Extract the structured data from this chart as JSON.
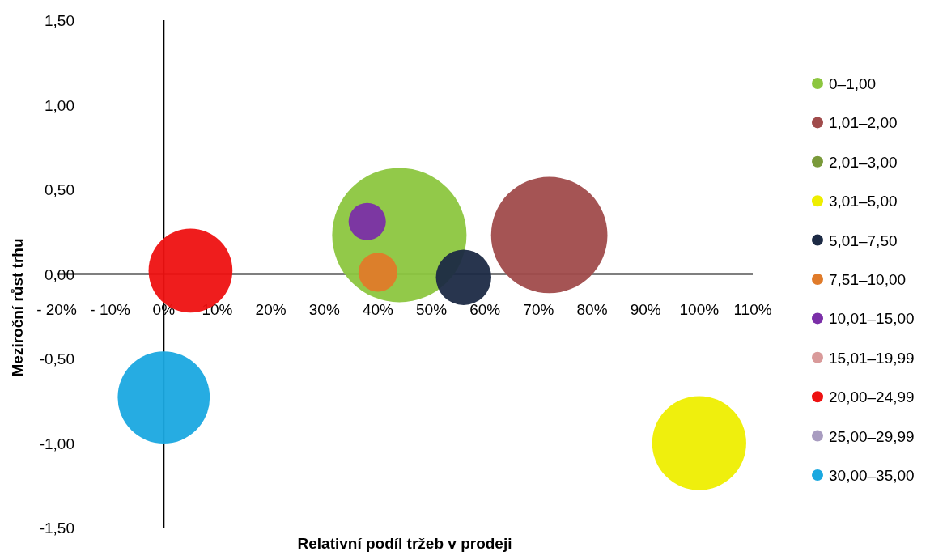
{
  "chart_data": {
    "type": "bubble",
    "xlabel": "Relativní podíl tržeb v prodeji",
    "ylabel": "Meziroční růst trhu",
    "xlim": [
      -20,
      110
    ],
    "ylim": [
      -1.5,
      1.5
    ],
    "xticks": [
      {
        "value": -20,
        "label": "- 20%"
      },
      {
        "value": -10,
        "label": "- 10%"
      },
      {
        "value": 0,
        "label": "0%"
      },
      {
        "value": 10,
        "label": "10%"
      },
      {
        "value": 20,
        "label": "20%"
      },
      {
        "value": 30,
        "label": "30%"
      },
      {
        "value": 40,
        "label": "40%"
      },
      {
        "value": 50,
        "label": "50%"
      },
      {
        "value": 60,
        "label": "60%"
      },
      {
        "value": 70,
        "label": "70%"
      },
      {
        "value": 80,
        "label": "80%"
      },
      {
        "value": 90,
        "label": "90%"
      },
      {
        "value": 100,
        "label": "100%"
      },
      {
        "value": 110,
        "label": "110%"
      }
    ],
    "yticks": [
      {
        "value": -1.5,
        "label": "-1,50"
      },
      {
        "value": -1,
        "label": "-1,00"
      },
      {
        "value": -0.5,
        "label": "-0,50"
      },
      {
        "value": 0,
        "label": "0,00"
      },
      {
        "value": 0.5,
        "label": "0,50"
      },
      {
        "value": 1,
        "label": "1,00"
      },
      {
        "value": 1.5,
        "label": "1,50"
      }
    ],
    "legend": "right",
    "series": [
      {
        "name": "0–1,00",
        "color": "#8cc63f",
        "x": [
          44
        ],
        "values": [
          0.23
        ],
        "sizes": [
          1
        ]
      },
      {
        "name": "1,01–2,00",
        "color": "#a04b4b",
        "x": [
          72
        ],
        "values": [
          0.23
        ],
        "sizes": [
          0.75
        ]
      },
      {
        "name": "2,01–3,00",
        "color": "#7a9a3a"
      },
      {
        "name": "3,01–5,00",
        "color": "#eeee00",
        "x": [
          100
        ],
        "values": [
          -1
        ],
        "sizes": [
          0.49
        ]
      },
      {
        "name": "5,01–7,50",
        "color": "#1c2a44",
        "x": [
          56
        ],
        "values": [
          -0.02
        ],
        "sizes": [
          0.17
        ]
      },
      {
        "name": "7,51–10,00",
        "color": "#e07b2a",
        "x": [
          40
        ],
        "values": [
          0.01
        ],
        "sizes": [
          0.084
        ]
      },
      {
        "name": "10,01–15,00",
        "color": "#7b2fa8",
        "x": [
          38
        ],
        "values": [
          0.31
        ],
        "sizes": [
          0.077
        ]
      },
      {
        "name": "15,01–19,99",
        "color": "#d99a9a"
      },
      {
        "name": "20,00–24,99",
        "color": "#ee1111",
        "x": [
          5
        ],
        "values": [
          0.02
        ],
        "sizes": [
          0.39
        ]
      },
      {
        "name": "25,00–29,99",
        "color": "#a89cc0"
      },
      {
        "name": "30,00–35,00",
        "color": "#1aa8e0",
        "x": [
          0
        ],
        "values": [
          -0.73
        ],
        "sizes": [
          0.47
        ]
      }
    ]
  }
}
